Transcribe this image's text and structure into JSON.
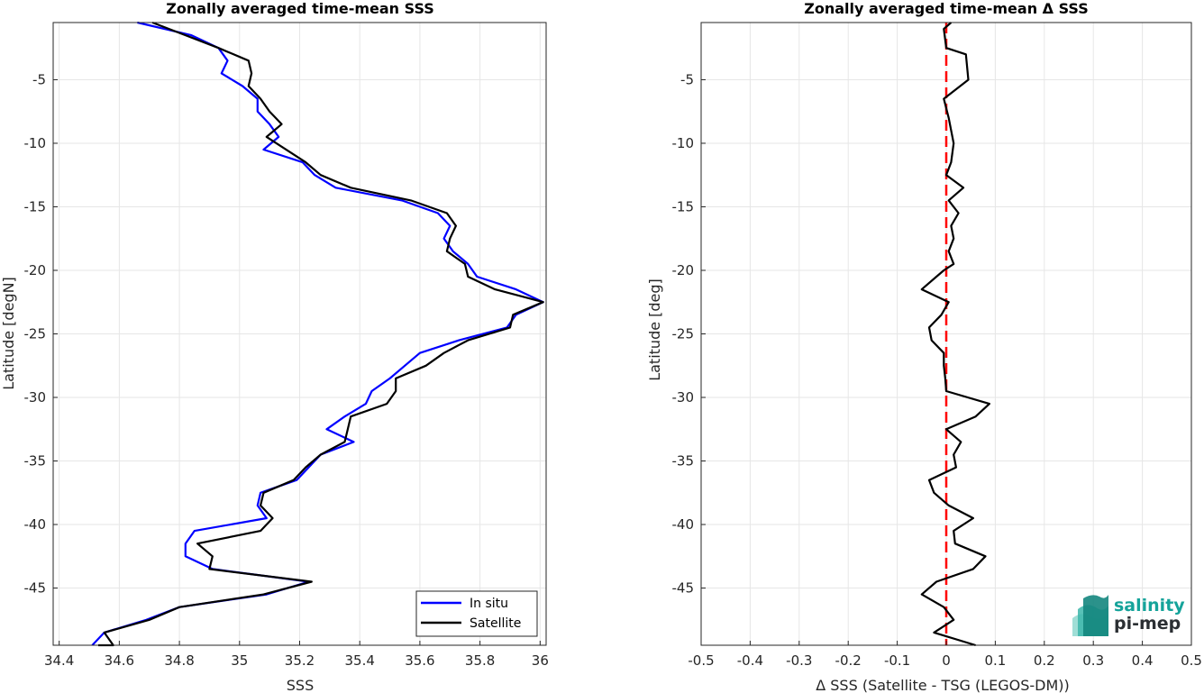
{
  "colors": {
    "in_situ": "#0000ff",
    "satellite": "#000000",
    "zero_line": "#ff0000",
    "grid": "#e6e6e6",
    "axes": "#262626",
    "logo_accent": "#15a39a",
    "logo_dark": "#2b2f33"
  },
  "logo": {
    "line1": "salinity",
    "line2": "pi-mep"
  },
  "chart_data": [
    {
      "type": "line",
      "title": "Zonally averaged time-mean SSS",
      "xlabel": "SSS",
      "ylabel": "Latitude [degN]",
      "xlim": [
        34.38,
        36.02
      ],
      "ylim": [
        -49.5,
        -0.5
      ],
      "xticks": [
        34.4,
        34.6,
        34.8,
        35,
        35.2,
        35.4,
        35.6,
        35.8,
        36
      ],
      "xtick_labels": [
        "34.4",
        "34.6",
        "34.8",
        "35",
        "35.2",
        "35.4",
        "35.6",
        "35.8",
        "36"
      ],
      "yticks": [
        -5,
        -10,
        -15,
        -20,
        -25,
        -30,
        -35,
        -40,
        -45
      ],
      "ytick_labels": [
        "-5",
        "-10",
        "-15",
        "-20",
        "-25",
        "-30",
        "-35",
        "-40",
        "-45"
      ],
      "grid": true,
      "legend_position": "bottom-right",
      "series": [
        {
          "name": "In situ",
          "color": "#0000ff",
          "x": [
            34.66,
            34.84,
            34.93,
            34.96,
            34.94,
            35.01,
            35.06,
            35.06,
            35.1,
            35.13,
            35.08,
            35.21,
            35.25,
            35.32,
            35.54,
            35.66,
            35.7,
            35.68,
            35.71,
            35.76,
            35.79,
            35.92,
            36.01,
            35.92,
            35.89,
            35.73,
            35.6,
            35.55,
            35.5,
            35.44,
            35.42,
            35.35,
            35.29,
            35.38,
            35.27,
            35.23,
            35.19,
            35.07,
            35.06,
            35.09,
            34.85,
            34.82,
            34.82,
            34.91,
            35.23,
            35.09,
            34.8,
            34.69,
            34.55,
            34.51
          ],
          "y": [
            -0.5,
            -1.5,
            -2.5,
            -3.5,
            -4.5,
            -5.5,
            -6.5,
            -7.5,
            -8.5,
            -9.5,
            -10.5,
            -11.5,
            -12.5,
            -13.5,
            -14.5,
            -15.5,
            -16.5,
            -17.5,
            -18.5,
            -19.5,
            -20.5,
            -21.5,
            -22.5,
            -23.5,
            -24.5,
            -25.5,
            -26.5,
            -27.5,
            -28.5,
            -29.5,
            -30.5,
            -31.5,
            -32.5,
            -33.5,
            -34.5,
            -35.5,
            -36.5,
            -37.5,
            -38.5,
            -39.5,
            -40.5,
            -41.5,
            -42.5,
            -43.5,
            -44.5,
            -45.5,
            -46.5,
            -47.5,
            -48.5,
            -49.5
          ]
        },
        {
          "name": "Satellite",
          "color": "#000000",
          "x": [
            34.71,
            34.82,
            34.93,
            35.03,
            35.04,
            35.03,
            35.07,
            35.1,
            35.14,
            35.09,
            35.22,
            35.27,
            35.37,
            35.57,
            35.69,
            35.72,
            35.7,
            35.69,
            35.75,
            35.76,
            35.85,
            36.01,
            35.91,
            35.9,
            35.76,
            35.68,
            35.62,
            35.52,
            35.52,
            35.49,
            35.37,
            35.36,
            35.35,
            35.27,
            35.22,
            35.18,
            35.08,
            35.07,
            35.11,
            35.07,
            34.86,
            34.91,
            34.9,
            35.24,
            35.08,
            34.8,
            34.7,
            34.55,
            34.58,
            34.53
          ],
          "y": [
            -0.5,
            -1.5,
            -2.5,
            -3.5,
            -4.5,
            -5.5,
            -6.5,
            -7.5,
            -8.5,
            -9.5,
            -11.5,
            -12.5,
            -13.5,
            -14.5,
            -15.5,
            -16.5,
            -17.5,
            -18.5,
            -19.5,
            -20.5,
            -21.5,
            -22.5,
            -23.5,
            -24.5,
            -25.5,
            -26.5,
            -27.5,
            -28.5,
            -29.5,
            -30.5,
            -31.5,
            -32.5,
            -33.5,
            -34.5,
            -35.5,
            -36.5,
            -37.5,
            -38.5,
            -39.5,
            -40.5,
            -41.5,
            -42.5,
            -43.5,
            -44.5,
            -45.5,
            -46.5,
            -47.5,
            -48.5,
            -49.5,
            -50.0
          ]
        }
      ]
    },
    {
      "type": "line",
      "title": "Zonally averaged time-mean Δ SSS",
      "xlabel": "Δ SSS (Satellite - TSG (LEGOS-DM))",
      "ylabel": "Latitude [deg]",
      "xlim": [
        -0.5,
        0.5
      ],
      "ylim": [
        -49.5,
        -0.5
      ],
      "xticks": [
        -0.5,
        -0.4,
        -0.3,
        -0.2,
        -0.1,
        0,
        0.1,
        0.2,
        0.3,
        0.4,
        0.5
      ],
      "xtick_labels": [
        "-0.5",
        "-0.4",
        "-0.3",
        "-0.2",
        "-0.1",
        "0",
        "0.1",
        "0.2",
        "0.3",
        "0.4",
        "0.5"
      ],
      "yticks": [
        -5,
        -10,
        -15,
        -20,
        -25,
        -30,
        -35,
        -40,
        -45
      ],
      "ytick_labels": [
        "-5",
        "-10",
        "-15",
        "-20",
        "-25",
        "-30",
        "-35",
        "-40",
        "-45"
      ],
      "grid": true,
      "reference_line": {
        "x": 0,
        "color": "#ff0000",
        "style": "dashed"
      },
      "series": [
        {
          "color": "#000000",
          "x": [
            0.01,
            -0.005,
            0.0,
            0.04,
            0.045,
            -0.005,
            0.005,
            0.015,
            0.01,
            0.0,
            0.035,
            0.005,
            0.025,
            0.01,
            0.015,
            0.005,
            0.015,
            -0.005,
            -0.02,
            -0.05,
            0.005,
            -0.01,
            -0.035,
            -0.03,
            -0.005,
            -0.005,
            -0.002,
            0.0,
            0.088,
            0.06,
            0.0,
            0.03,
            0.015,
            0.02,
            -0.035,
            -0.025,
            0.005,
            0.055,
            0.015,
            0.018,
            0.08,
            0.055,
            -0.02,
            -0.05,
            -0.005,
            0.015,
            -0.025,
            0.06
          ],
          "y": [
            -0.5,
            -1.0,
            -2.5,
            -3.0,
            -5.0,
            -6.5,
            -8.0,
            -10.0,
            -11.5,
            -12.5,
            -13.5,
            -14.5,
            -15.5,
            -16.5,
            -17.5,
            -18.5,
            -19.5,
            -20.0,
            -20.5,
            -21.5,
            -22.5,
            -23.5,
            -24.5,
            -25.5,
            -26.5,
            -27.5,
            -28.5,
            -29.5,
            -30.5,
            -31.5,
            -32.5,
            -33.5,
            -34.5,
            -35.5,
            -36.5,
            -37.5,
            -38.5,
            -39.5,
            -40.5,
            -41.5,
            -42.5,
            -43.5,
            -44.5,
            -45.5,
            -46.5,
            -47.5,
            -48.5,
            -49.5
          ]
        }
      ]
    }
  ]
}
